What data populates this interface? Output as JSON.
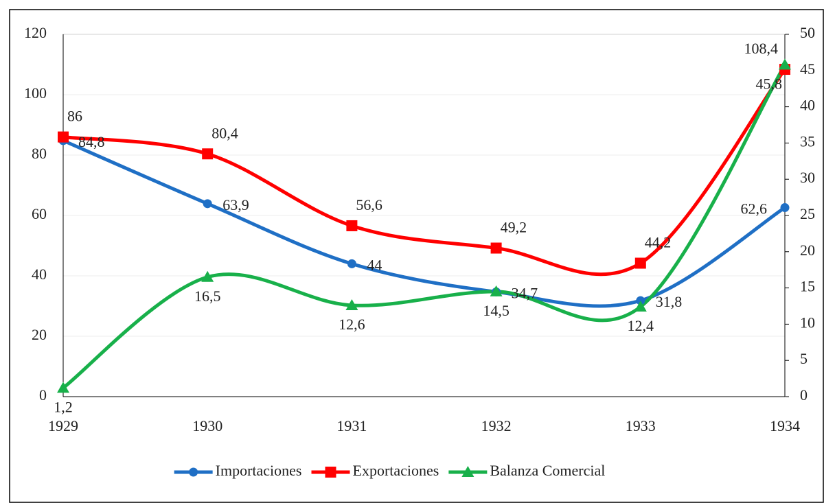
{
  "chart_data": {
    "type": "line",
    "categories": [
      "1929",
      "1930",
      "1931",
      "1932",
      "1933",
      "1934"
    ],
    "series": [
      {
        "name": "Importaciones",
        "color": "#1f6fc5",
        "marker": "circle",
        "values": [
          84.8,
          63.9,
          44,
          34.7,
          31.8,
          62.6
        ],
        "value_labels": [
          "84,8",
          "63,9",
          "44",
          "34,7",
          "31,8",
          "62,6"
        ]
      },
      {
        "name": "Exportaciones",
        "color": "#ff0000",
        "marker": "square",
        "values": [
          86,
          80.4,
          56.6,
          49.2,
          44.2,
          108.4
        ],
        "value_labels": [
          "86",
          "80,4",
          "56,6",
          "49,2",
          "44,2",
          "108,4"
        ]
      },
      {
        "name": "Balanza Comercial",
        "color": "#18b04a",
        "marker": "triangle",
        "axis": "y2",
        "values": [
          1.2,
          16.5,
          12.6,
          14.5,
          12.4,
          45.8
        ],
        "value_labels": [
          "1,2",
          "16,5",
          "12,6",
          "14,5",
          "12,4",
          "45,8"
        ]
      }
    ],
    "ylim": [
      0,
      120
    ],
    "yticks": [
      0,
      20,
      40,
      60,
      80,
      100,
      120
    ],
    "y2lim": [
      0,
      50
    ],
    "y2ticks": [
      0,
      5,
      10,
      15,
      20,
      25,
      30,
      35,
      40,
      45,
      50
    ],
    "grid": true,
    "legend": "bottom",
    "smooth": true
  }
}
